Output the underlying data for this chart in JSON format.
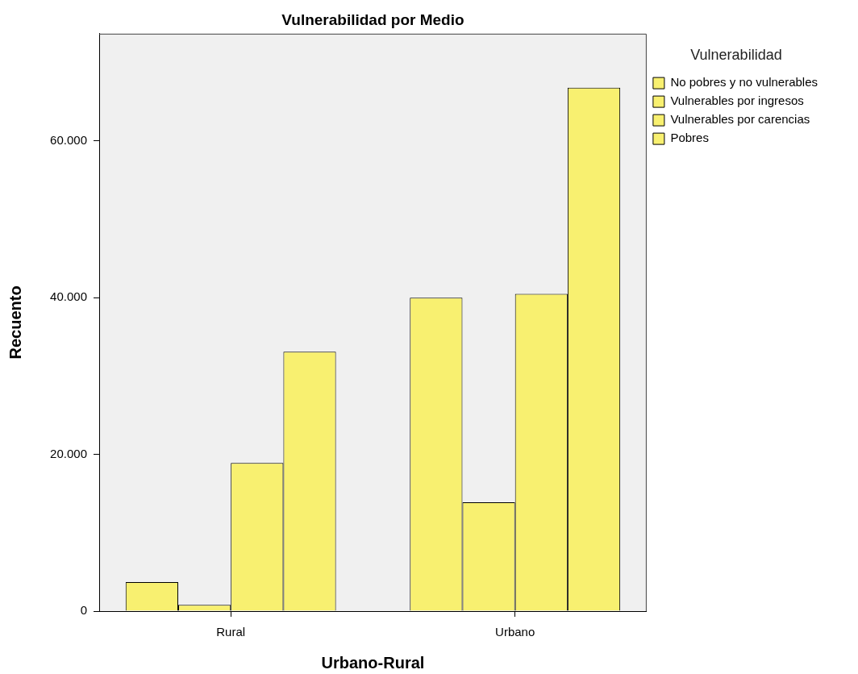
{
  "chart_data": {
    "type": "bar",
    "title": "Vulnerabilidad por Medio",
    "xlabel": "Urbano-Rural",
    "ylabel": "Recuento",
    "legend_title": "Vulnerabilidad",
    "categories": [
      "Rural",
      "Urbano"
    ],
    "series": [
      {
        "name": "No pobres y no vulnerables",
        "color": "#f8f070",
        "values": [
          3700,
          40000
        ]
      },
      {
        "name": "Vulnerables por ingresos",
        "color": "#f8f070",
        "values": [
          800,
          13900
        ]
      },
      {
        "name": "Vulnerables por carencias",
        "color": "#f8f070",
        "values": [
          18900,
          40500
        ]
      },
      {
        "name": "Pobres",
        "color": "#f8f070",
        "values": [
          33100,
          66800
        ]
      }
    ],
    "ylim": [
      0,
      73700
    ],
    "yticks": [
      0,
      {
        "value": 20000,
        "label": "20.000"
      },
      {
        "value": 40000,
        "label": "40.000"
      },
      {
        "value": 60000,
        "label": "60.000"
      }
    ],
    "grid": false,
    "legend": "right"
  }
}
